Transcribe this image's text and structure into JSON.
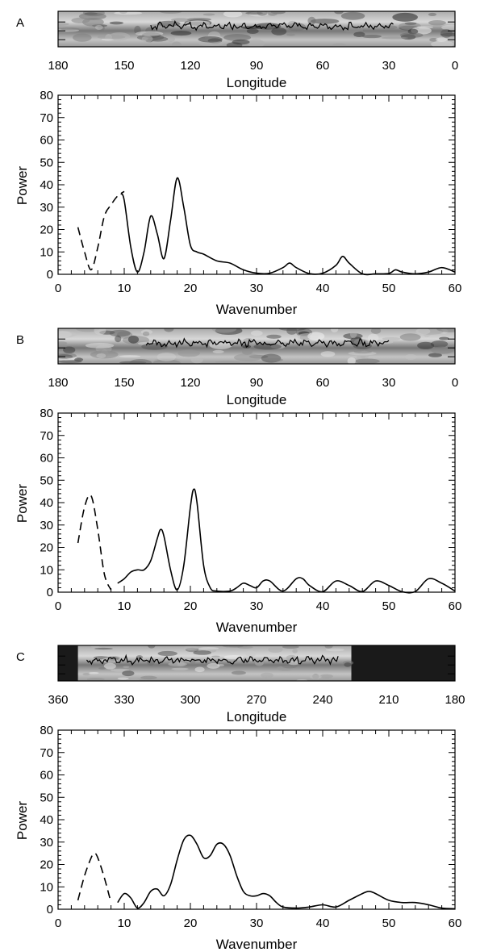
{
  "colors": {
    "ink": "#000000",
    "background": "#ffffff",
    "image_dark": "#1a1a1a",
    "image_mid": "#8c8c8c",
    "image_light": "#e6e6e6"
  },
  "panels": [
    {
      "letter": "A",
      "strip": {
        "xlabel": "Longitude",
        "xlim": [
          180,
          0
        ],
        "ticks": [
          180,
          150,
          120,
          90,
          60,
          30,
          0
        ],
        "profile_range": [
          138,
          28
        ]
      },
      "xlabel": "Wavenumber",
      "ylabel": "Power"
    },
    {
      "letter": "B",
      "strip": {
        "xlabel": "Longitude",
        "xlim": [
          180,
          0
        ],
        "ticks": [
          180,
          150,
          120,
          90,
          60,
          30,
          0
        ],
        "profile_range": [
          140,
          30
        ]
      },
      "xlabel": "Wavenumber",
      "ylabel": "Power"
    },
    {
      "letter": "C",
      "strip": {
        "xlabel": "Longitude",
        "xlim": [
          360,
          180
        ],
        "ticks": [
          360,
          330,
          300,
          270,
          240,
          210,
          180
        ],
        "profile_range": [
          347,
          233
        ],
        "data_coverage": [
          351,
          227
        ]
      },
      "xlabel": "Wavenumber",
      "ylabel": "Power"
    }
  ],
  "chart_data": [
    {
      "type": "line",
      "panel": "A",
      "xlim": [
        0,
        60
      ],
      "ylim": [
        0,
        80
      ],
      "xticks": [
        0,
        10,
        20,
        30,
        40,
        50,
        60
      ],
      "yticks": [
        0,
        10,
        20,
        30,
        40,
        50,
        60,
        70,
        80
      ],
      "xlabel": "Wavenumber",
      "ylabel": "Power",
      "series": [
        {
          "style": "dashed",
          "x": [
            3,
            4,
            5,
            6,
            7,
            8,
            9,
            10
          ],
          "y": [
            21,
            10,
            2,
            12,
            26,
            31,
            35,
            37
          ]
        },
        {
          "style": "solid",
          "x": [
            9.5,
            10,
            11,
            12,
            13,
            14,
            15,
            16,
            17,
            18,
            19,
            20,
            21,
            22,
            24,
            26,
            28,
            30,
            32,
            34,
            35,
            36,
            38,
            40,
            42,
            43,
            44,
            46,
            48,
            50,
            51,
            52,
            54,
            56,
            58,
            60
          ],
          "y": [
            36,
            33,
            12,
            1,
            10,
            26,
            18,
            7,
            24,
            43,
            30,
            13,
            10,
            9,
            6,
            5,
            2,
            0.5,
            0.5,
            3,
            5,
            3,
            0.3,
            0.5,
            4,
            8,
            5,
            0.2,
            0.2,
            0.4,
            2,
            1,
            0.2,
            1,
            3,
            1
          ]
        }
      ]
    },
    {
      "type": "line",
      "panel": "B",
      "xlim": [
        0,
        60
      ],
      "ylim": [
        0,
        80
      ],
      "xticks": [
        0,
        10,
        20,
        30,
        40,
        50,
        60
      ],
      "yticks": [
        0,
        10,
        20,
        30,
        40,
        50,
        60,
        70,
        80
      ],
      "xlabel": "Wavenumber",
      "ylabel": "Power",
      "series": [
        {
          "style": "dashed",
          "x": [
            3,
            4,
            5,
            6,
            7,
            8
          ],
          "y": [
            22,
            38,
            43,
            28,
            8,
            1
          ]
        },
        {
          "style": "solid",
          "x": [
            9,
            10,
            11,
            12,
            13,
            14,
            15,
            15.5,
            16,
            17,
            18,
            19,
            20,
            20.5,
            21,
            22,
            23,
            24,
            26,
            27,
            28,
            29,
            30,
            31,
            32,
            34,
            36,
            37,
            38,
            40,
            42,
            44,
            46,
            48,
            50,
            52,
            54,
            56,
            58,
            60
          ],
          "y": [
            4,
            6,
            9,
            10,
            10,
            14,
            24,
            28,
            25,
            10,
            1,
            12,
            38,
            46,
            40,
            12,
            2,
            0.5,
            0.5,
            2,
            4,
            3,
            2,
            5,
            5,
            0.5,
            6,
            6,
            3,
            0.2,
            5,
            3,
            0.3,
            5,
            3,
            0.2,
            0.3,
            6,
            4,
            0.5
          ]
        }
      ]
    },
    {
      "type": "line",
      "panel": "C",
      "xlim": [
        0,
        60
      ],
      "ylim": [
        0,
        80
      ],
      "xticks": [
        0,
        10,
        20,
        30,
        40,
        50,
        60
      ],
      "yticks": [
        0,
        10,
        20,
        30,
        40,
        50,
        60,
        70,
        80
      ],
      "xlabel": "Wavenumber",
      "ylabel": "Power",
      "series": [
        {
          "style": "dashed",
          "x": [
            3,
            4,
            5,
            5.5,
            6,
            7,
            8
          ],
          "y": [
            4,
            15,
            23,
            25,
            23,
            14,
            3
          ]
        },
        {
          "style": "solid",
          "x": [
            9,
            10,
            11,
            12,
            13,
            14,
            15,
            16,
            17,
            18,
            19,
            20,
            21,
            22,
            23,
            24,
            25,
            26,
            27,
            28,
            29,
            30,
            31,
            32,
            33,
            34,
            36,
            38,
            40,
            42,
            44,
            46,
            47,
            48,
            50,
            52,
            54,
            56,
            58,
            60
          ],
          "y": [
            3,
            7,
            5,
            0.5,
            3,
            8,
            9,
            6,
            11,
            22,
            31,
            33,
            29,
            23,
            24,
            29,
            29,
            24,
            15,
            8,
            6,
            6,
            7,
            6,
            3,
            1,
            0.5,
            1,
            2,
            1,
            4,
            7,
            8,
            7,
            4,
            3,
            3,
            2,
            0.5,
            0.2
          ]
        }
      ]
    }
  ]
}
